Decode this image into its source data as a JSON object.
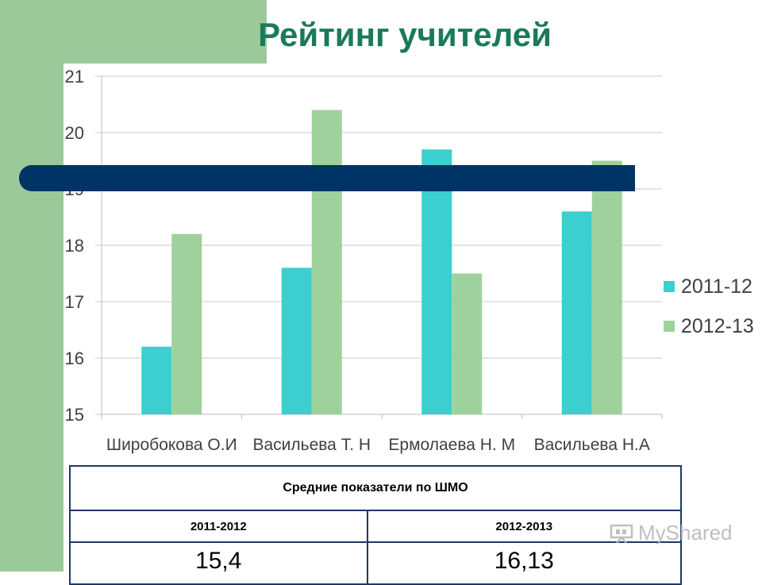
{
  "title": "Рейтинг учителей",
  "colors": {
    "series_2011": "#3bcfcf",
    "series_2012": "#9fd19c",
    "accent_bar": "#003366",
    "title": "#1a7a5a",
    "side": "#9cc99a"
  },
  "chart_data": {
    "type": "bar",
    "title": "",
    "xlabel": "",
    "ylabel": "",
    "ylim": [
      15,
      21
    ],
    "yticks": [
      "15",
      "16",
      "17",
      "18",
      "19",
      "20",
      "21"
    ],
    "categories": [
      "Широбокова  О.И",
      "Васильева  Т. Н",
      "Ермолаева  Н. М",
      "Васильева  Н.А"
    ],
    "series": [
      {
        "name": "2011-12",
        "values": [
          16.2,
          17.6,
          19.7,
          18.6
        ]
      },
      {
        "name": "2012-13",
        "values": [
          18.2,
          20.4,
          17.5,
          19.5
        ]
      }
    ],
    "grid": true,
    "legend_position": "right"
  },
  "table": {
    "header": "Средние показатели по ШМО",
    "years": [
      "2011-2012",
      "2012-2013"
    ],
    "values": [
      "15,4",
      "16,13"
    ]
  },
  "watermark": {
    "text": "MyShared",
    "icon": "presentation-icon"
  }
}
